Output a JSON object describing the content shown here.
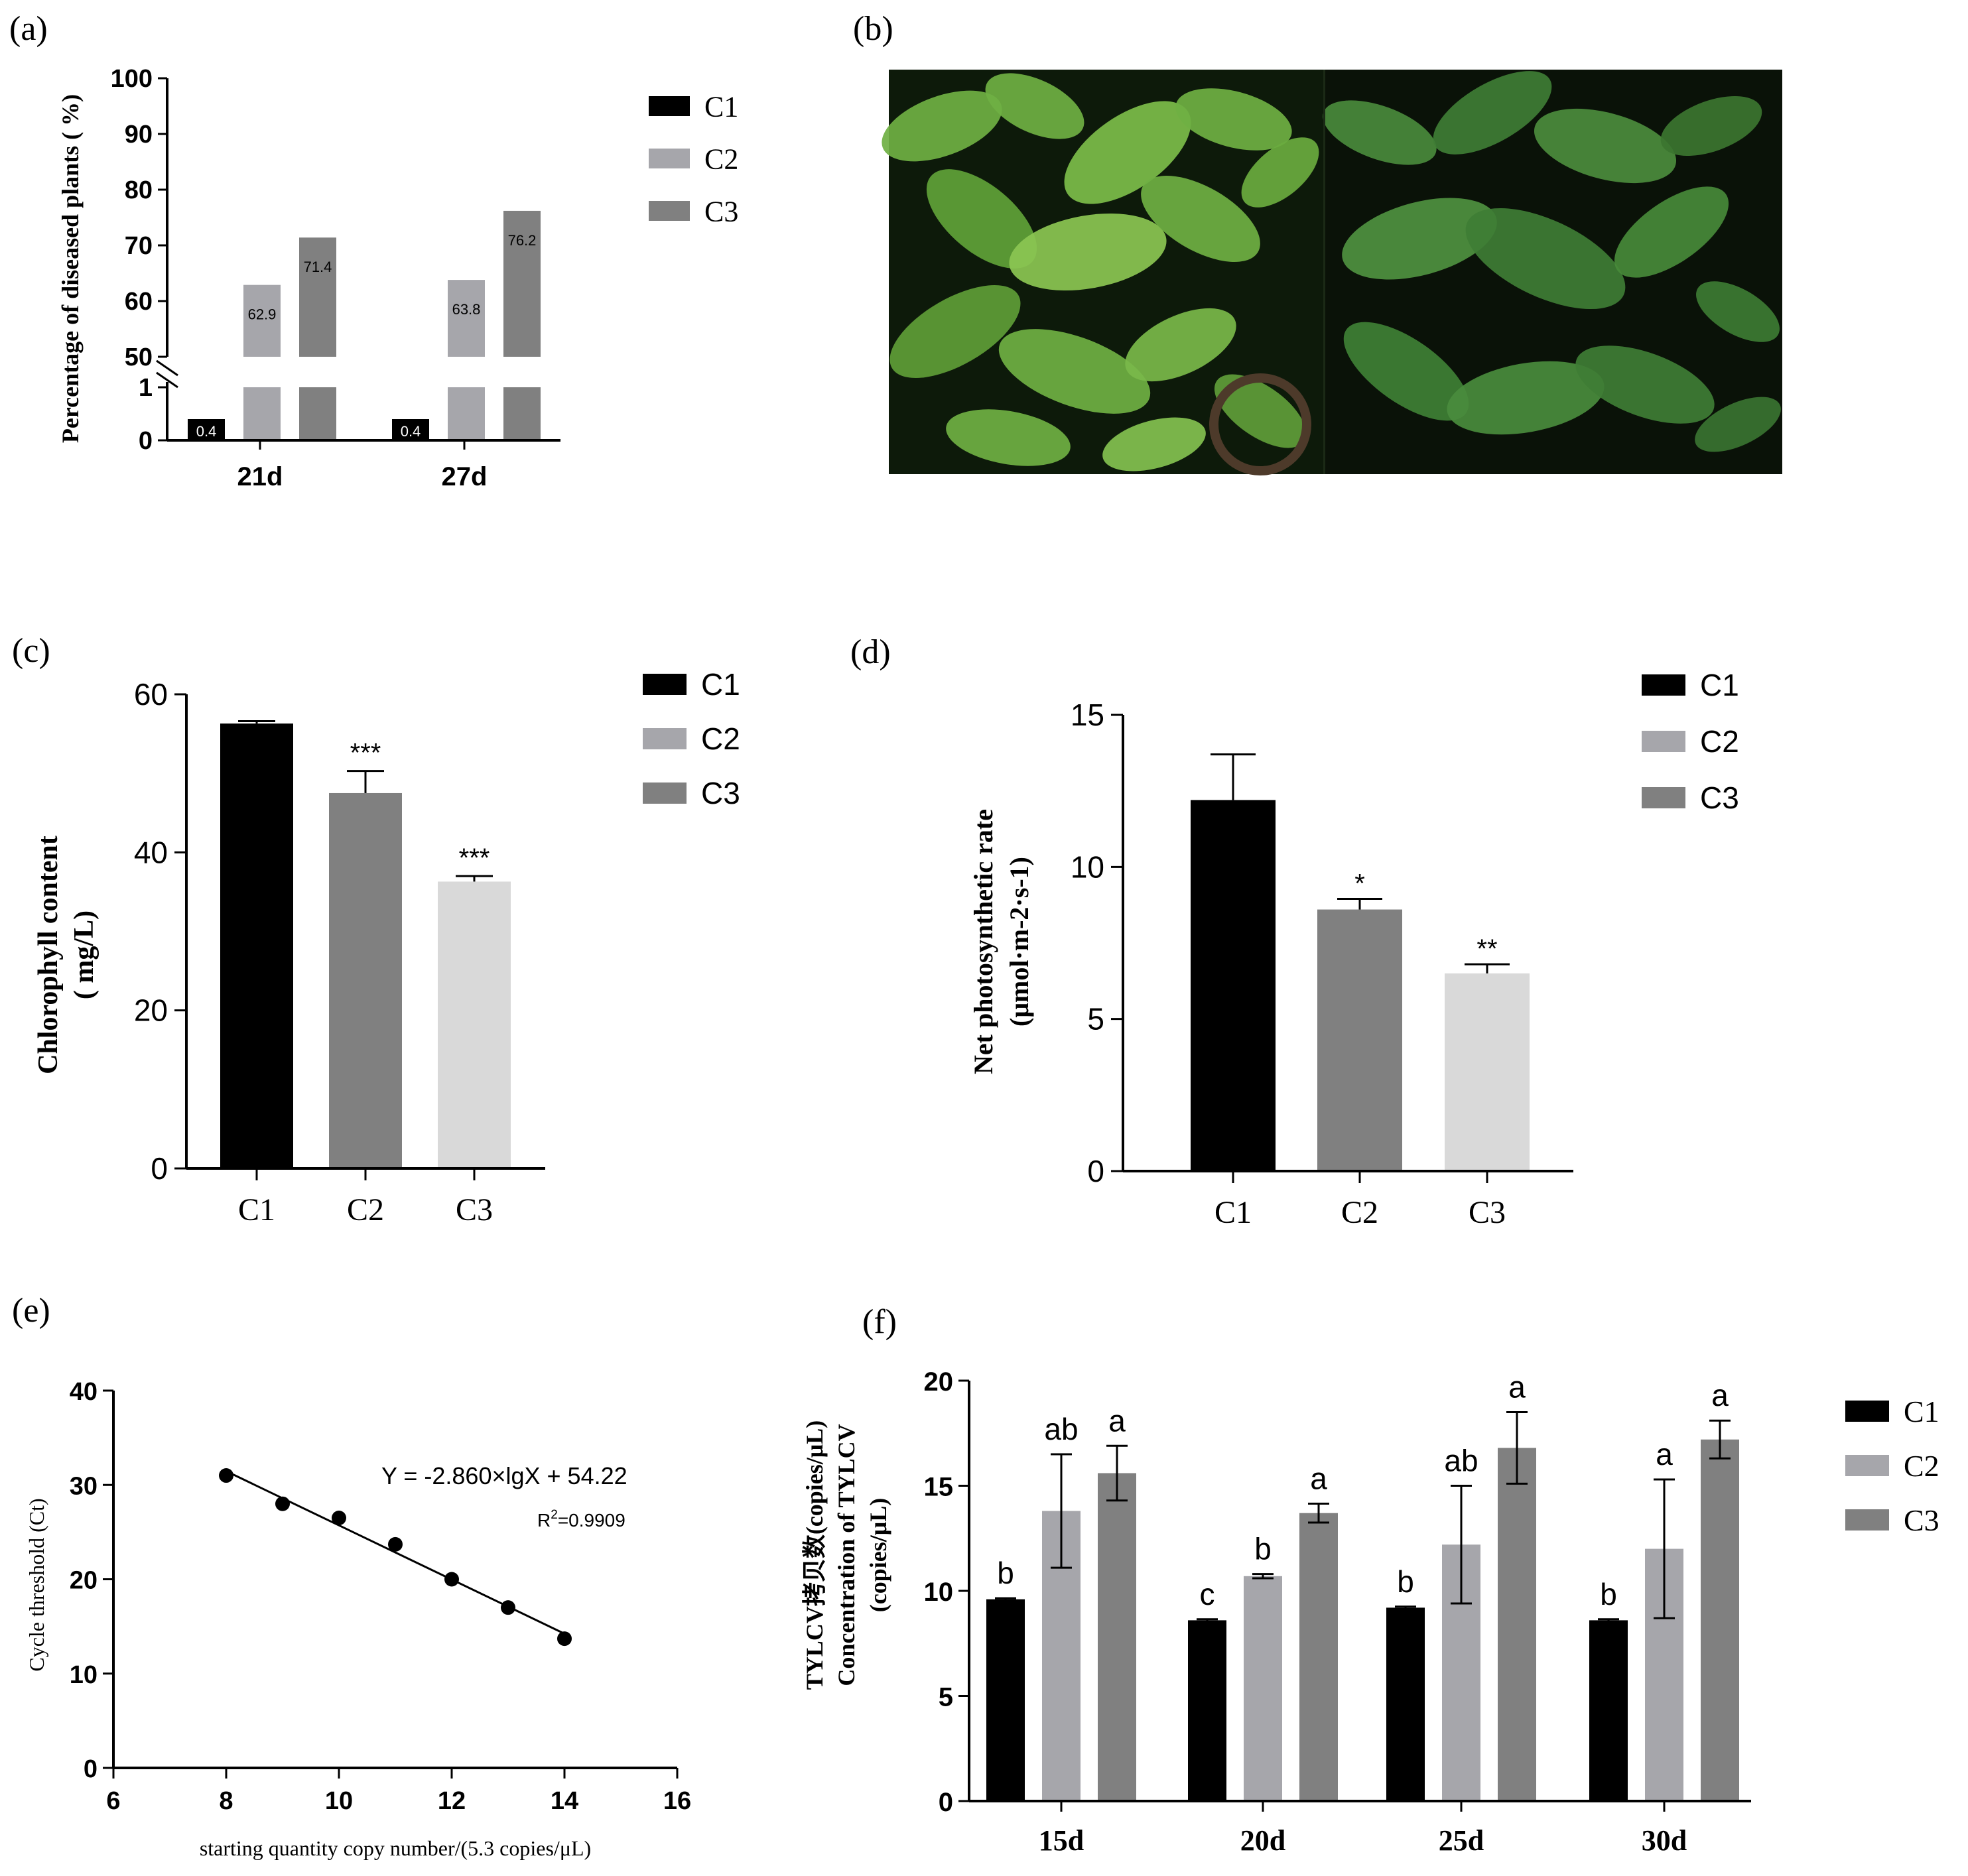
{
  "colors": {
    "C1": "#000000",
    "C2": "#a6a6ab",
    "C3": "#808080",
    "light": "#d9d9d9",
    "mid": "#808080",
    "photo_bg": "#000000",
    "leaf_light": "#6fb043",
    "leaf_dark": "#3f7d35"
  },
  "panels": {
    "a": {
      "letter": "(a)"
    },
    "b": {
      "letter": "(b)"
    },
    "c": {
      "letter": "(c)"
    },
    "d": {
      "letter": "(d)"
    },
    "e": {
      "letter": "(e)"
    },
    "f": {
      "letter": "(f)"
    }
  },
  "photo": {
    "description_icon": "tomato-plant-photo"
  },
  "chart_data": [
    {
      "id": "a",
      "type": "bar",
      "categories": [
        "21d",
        "27d"
      ],
      "series": [
        {
          "name": "C1",
          "values": [
            0.4,
            0.4
          ],
          "labels": [
            "0.4",
            "0.4"
          ]
        },
        {
          "name": "C2",
          "values": [
            62.9,
            63.8
          ],
          "labels": [
            "62.9",
            "63.8"
          ]
        },
        {
          "name": "C3",
          "values": [
            71.4,
            76.2
          ],
          "labels": [
            "71.4",
            "76.2"
          ]
        }
      ],
      "ylabel": "Percentage of diseased plants ( %)",
      "axis_break": {
        "lower": [
          0,
          1
        ],
        "upper": [
          50,
          100
        ]
      },
      "yticks_lower": [
        "0",
        "1"
      ],
      "yticks_upper": [
        "50",
        "60",
        "70",
        "80",
        "90",
        "100"
      ],
      "legend": "right"
    },
    {
      "id": "c",
      "type": "bar",
      "categories": [
        "C1",
        "C2",
        "C3"
      ],
      "values": [
        56.3,
        47.5,
        36.3
      ],
      "errors": [
        0.3,
        2.8,
        0.7
      ],
      "significance": [
        "",
        "***",
        "***"
      ],
      "series_names": [
        "C1",
        "C2",
        "C3"
      ],
      "ylabel_line1": "Chlorophyll content",
      "ylabel_line2": "( mg/L)",
      "ylim": [
        0,
        60
      ],
      "yticks": [
        "0",
        "20",
        "40",
        "60"
      ],
      "legend": "right"
    },
    {
      "id": "d",
      "type": "bar",
      "categories": [
        "C1",
        "C2",
        "C3"
      ],
      "values": [
        12.2,
        8.6,
        6.5
      ],
      "errors": [
        1.5,
        0.35,
        0.3
      ],
      "significance": [
        "",
        "*",
        "**"
      ],
      "series_names": [
        "C1",
        "C2",
        "C3"
      ],
      "ylabel_line1": "Net photosynthetic rate",
      "ylabel_line2": "(μmol·m-2·s-1)",
      "ylim": [
        0,
        15
      ],
      "yticks": [
        "0",
        "5",
        "10",
        "15"
      ],
      "legend": "right"
    },
    {
      "id": "e",
      "type": "scatter",
      "x": [
        8,
        9,
        10,
        11,
        12,
        13,
        14
      ],
      "y": [
        31,
        28,
        26.5,
        23.7,
        20,
        17,
        13.7
      ],
      "fit": {
        "slope": -2.86,
        "intercept": 54.22
      },
      "equation": "Y =  -2.860×lgX + 54.22",
      "r2_prefix": "R",
      "r2_sup": "2",
      "r2_value": "=0.9909",
      "xlabel": "starting quantity copy number/(5.3 copies/μL)",
      "ylabel": "Cycle threshold (Ct)",
      "xlim": [
        6,
        16
      ],
      "ylim": [
        0,
        40
      ],
      "xticks": [
        "6",
        "8",
        "10",
        "12",
        "14",
        "16"
      ],
      "yticks": [
        "0",
        "10",
        "20",
        "30",
        "40"
      ]
    },
    {
      "id": "f",
      "type": "bar",
      "categories": [
        "15d",
        "20d",
        "25d",
        "30d"
      ],
      "series": [
        {
          "name": "C1",
          "values": [
            9.6,
            8.6,
            9.2,
            8.6
          ],
          "errors": [
            0.05,
            0.05,
            0.05,
            0.05
          ],
          "letters": [
            "b",
            "c",
            "b",
            "b"
          ]
        },
        {
          "name": "C2",
          "values": [
            13.8,
            10.7,
            12.2,
            12.0
          ],
          "errors": [
            2.7,
            0.1,
            2.8,
            3.3
          ],
          "letters": [
            "ab",
            "b",
            "ab",
            "a"
          ]
        },
        {
          "name": "C3",
          "values": [
            15.6,
            13.7,
            16.8,
            17.2
          ],
          "errors": [
            1.3,
            0.45,
            1.7,
            0.9
          ],
          "letters": [
            "a",
            "a",
            "a",
            "a"
          ]
        }
      ],
      "ylabel_line1": "TYLCV拷贝数(copies/μL)",
      "ylabel_line2": "Concentration of TYLCV",
      "ylabel_line3": "(copies/μL)",
      "ylim": [
        0,
        20
      ],
      "yticks": [
        "0",
        "5",
        "10",
        "15",
        "20"
      ],
      "legend": "right"
    }
  ]
}
